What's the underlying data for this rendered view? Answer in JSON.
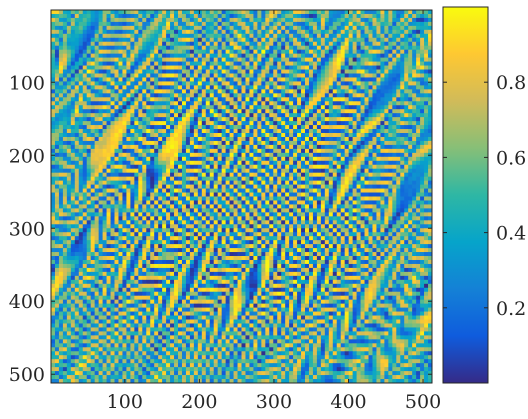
{
  "chart_data": [
    {
      "type": "heatmap",
      "title": "",
      "xlabel": "",
      "ylabel": "",
      "xlim": [
        1,
        512
      ],
      "ylim": [
        1,
        512
      ],
      "y_direction": "reversed (top = 1, bottom = 512)",
      "grid": false,
      "x_ticks": [
        100,
        200,
        300,
        400,
        500
      ],
      "y_ticks": [
        100,
        200,
        300,
        400,
        500
      ],
      "x_tick_labels": [
        "100",
        "200",
        "300",
        "400",
        "500"
      ],
      "y_tick_labels": [
        "100",
        "200",
        "300",
        "400",
        "500"
      ],
      "value_range": [
        0,
        1
      ],
      "colormap": "parula",
      "colormap_stops": [
        "#352a87",
        "#0f5cdd",
        "#1481d6",
        "#06a4ca",
        "#2eb7a4",
        "#87bf77",
        "#d1bb59",
        "#fec832",
        "#f9fb0e"
      ],
      "pattern_description": "fine diagonal stripe texture: coherent oblique stripes through the central region, turbulent patchy cells near the border",
      "colorbar": {
        "location": "right",
        "range": [
          0,
          1
        ],
        "ticks": [
          0.2,
          0.4,
          0.6,
          0.8
        ],
        "tick_labels": [
          "0.2",
          "0.4",
          "0.6",
          "0.8"
        ]
      }
    }
  ]
}
